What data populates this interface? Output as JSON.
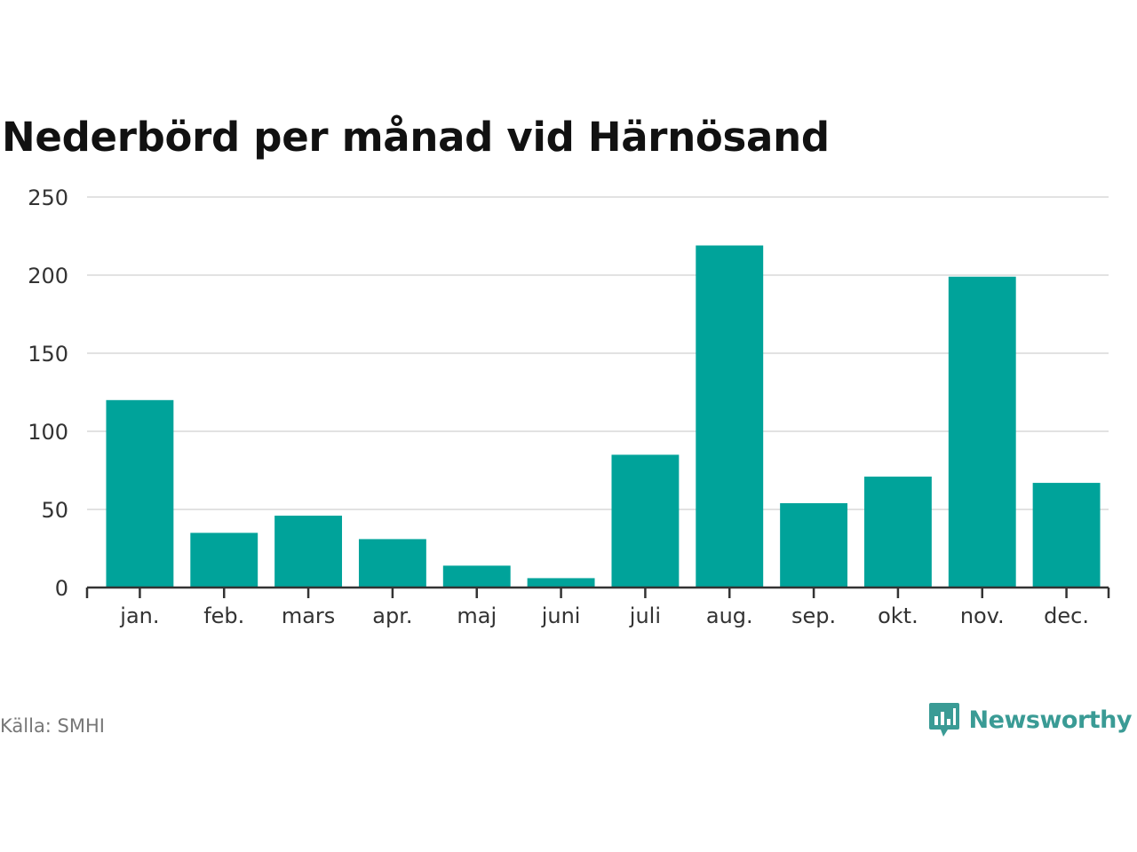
{
  "chart_title": "Nederbörd per månad vid Härnösand",
  "source": "Källa: SMHI",
  "brand": "Newsworthy",
  "colors": {
    "bar": "#00a39a",
    "brand": "#3a9b95"
  },
  "chart_data": {
    "type": "bar",
    "title": "Nederbörd per månad vid Härnösand",
    "xlabel": "",
    "ylabel": "",
    "categories": [
      "jan.",
      "feb.",
      "mars",
      "apr.",
      "maj",
      "juni",
      "juli",
      "aug.",
      "sep.",
      "okt.",
      "nov.",
      "dec."
    ],
    "values": [
      120,
      35,
      46,
      31,
      14,
      6,
      85,
      219,
      54,
      71,
      199,
      67
    ],
    "ylim": [
      0,
      250
    ],
    "yticks": [
      0,
      50,
      100,
      150,
      200,
      250
    ],
    "grid": true,
    "legend": "none"
  }
}
